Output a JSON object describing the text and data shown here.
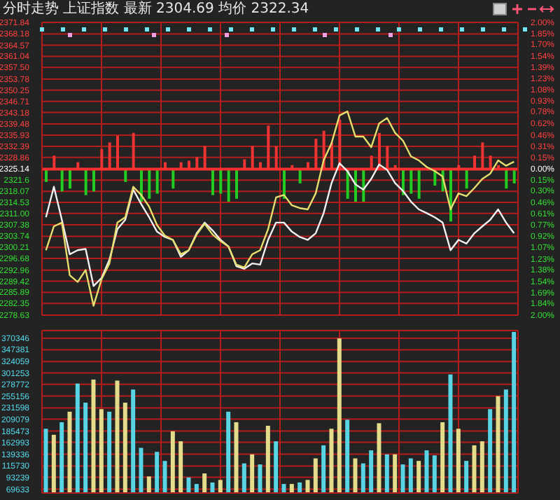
{
  "chart_data": [
    {
      "type": "line",
      "title": "分时走势 上证指数 最新 2304.69 均价 2322.34",
      "categories": [
        null,
        null,
        null,
        null,
        null,
        null,
        null,
        null,
        null,
        null,
        null,
        null,
        null,
        null,
        null,
        null,
        null,
        null,
        null,
        null,
        null,
        null,
        null,
        null,
        null,
        null,
        null,
        null,
        null,
        null,
        null,
        null,
        null,
        null,
        null,
        null,
        null,
        null,
        null,
        null,
        null,
        null,
        null,
        null,
        null,
        null,
        null,
        null,
        null,
        null,
        null,
        null,
        null,
        null,
        null,
        null,
        null,
        null,
        null,
        null
      ],
      "series": [
        {
          "type": "bar",
          "axis": "y2",
          "values": [
            -0.18,
            0.18,
            -0.31,
            -0.27,
            0.09,
            -0.36,
            -0.31,
            0.27,
            0.36,
            0.45,
            -0.18,
            0.49,
            -0.45,
            -0.41,
            -0.34,
            0.09,
            -0.27,
            0.09,
            0.11,
            0.16,
            0.31,
            -0.36,
            -0.34,
            -0.45,
            -0.41,
            0.13,
            0.31,
            0.09,
            0.59,
            0.31,
            -0.41,
            0.05,
            -0.2,
            0.09,
            0.41,
            0.52,
            0.36,
            0.67,
            -0.41,
            -0.45,
            -0.45,
            0.18,
            0.49,
            0.31,
            0.05,
            -0.36,
            -0.34,
            -0.41,
            null,
            -0.23,
            -0.31,
            -0.72,
            0.05,
            -0.27,
            0.18,
            0.36,
            0.18,
            0.05,
            -0.27,
            -0.2
          ],
          "colors": [
            "#22cc22",
            "#ee3333",
            "#22cc22",
            "#22cc22",
            "#ee3333",
            "#22cc22",
            "#22cc22",
            "#ee3333",
            "#ee3333",
            "#ee3333",
            "#22cc22",
            "#ee3333",
            "#22cc22",
            "#22cc22",
            "#22cc22",
            "#ee3333",
            "#22cc22",
            "#ee3333",
            "#ee3333",
            "#ee3333",
            "#ee3333",
            "#22cc22",
            "#22cc22",
            "#22cc22",
            "#22cc22",
            "#ee3333",
            "#ee3333",
            "#ee3333",
            "#ee3333",
            "#ee3333",
            "#22cc22",
            "#ee3333",
            "#22cc22",
            "#ee3333",
            "#ee3333",
            "#ee3333",
            "#ee3333",
            "#ee3333",
            "#22cc22",
            "#22cc22",
            "#22cc22",
            "#ee3333",
            "#ee3333",
            "#ee3333",
            "#ee3333",
            "#22cc22",
            "#22cc22",
            "#22cc22",
            "#ee3333",
            "#22cc22",
            "#22cc22",
            "#22cc22",
            "#ee3333",
            "#22cc22",
            "#ee3333",
            "#ee3333",
            "#ee3333",
            "#ee3333",
            "#22cc22",
            "#22cc22"
          ]
        },
        {
          "type": "line",
          "color": "#f0f0f0",
          "values": [
            2309.8,
            2319.5,
            2309.0,
            2298.0,
            2299.3,
            2299.7,
            2287.9,
            2290.4,
            2296.3,
            2306.0,
            2309.0,
            2318.6,
            2314.0,
            2309.8,
            2305.2,
            2303.5,
            2302.6,
            2297.2,
            2299.3,
            2304.7,
            2308.1,
            2305.6,
            2302.6,
            2300.5,
            2294.2,
            2293.4,
            2295.1,
            2294.7,
            2302.6,
            2308.1,
            2308.1,
            2305.2,
            2303.5,
            2302.6,
            2304.7,
            2311.1,
            2320.7,
            2327.0,
            2324.5,
            2320.3,
            2318.6,
            2322.0,
            2326.6,
            2324.9,
            2320.7,
            2318.2,
            2314.8,
            2312.3,
            2311.1,
            2309.8,
            2308.1,
            2299.3,
            2302.6,
            2301.4,
            2304.7,
            2306.9,
            2309.0,
            2312.3,
            2308.1,
            2304.7
          ]
        },
        {
          "type": "line",
          "color": "#e6de6e",
          "values": [
            2299.3,
            2306.9,
            2308.1,
            2291.3,
            2289.2,
            2293.0,
            2281.6,
            2290.0,
            2295.1,
            2308.1,
            2309.8,
            2319.5,
            2316.9,
            2313.2,
            2307.3,
            2303.9,
            2302.6,
            2298.0,
            2299.3,
            2304.3,
            2307.7,
            2304.3,
            2302.2,
            2300.5,
            2294.7,
            2293.8,
            2298.0,
            2299.3,
            2306.0,
            2316.1,
            2316.9,
            2313.6,
            2312.7,
            2312.3,
            2317.4,
            2327.9,
            2333.4,
            2342.2,
            2343.5,
            2335.5,
            2335.5,
            2332.1,
            2339.7,
            2341.4,
            2336.7,
            2334.2,
            2329.2,
            2327.9,
            2325.8,
            2324.5,
            2322.8,
            2312.3,
            2317.4,
            2316.5,
            2319.1,
            2322.0,
            2323.7,
            2327.9,
            2326.2,
            2327.5
          ]
        }
      ],
      "ylim": [
        2278.63,
        2371.84
      ],
      "yticks": [
        2278.63,
        2282.35,
        2285.89,
        2289.42,
        2292.96,
        2296.68,
        2300.21,
        2303.74,
        2307.38,
        {
          "value": 2311,
          "label": "2311.00"
        },
        2314.53,
        2318.07,
        2321.6,
        2325.14,
        2328.86,
        2332.39,
        2335.93,
        2339.48,
        2343.18,
        2346.71,
        2350.25,
        2353.78,
        {
          "value": 2357.5,
          "label": "2357.50"
        },
        2361.04,
        2364.57,
        2368.18,
        2371.84
      ],
      "y2lim": [
        -2,
        2
      ],
      "y2ticks": [
        {
          "value": -2.0,
          "label": "2.00%"
        },
        {
          "value": -1.84,
          "label": "1.84%"
        },
        {
          "value": -1.69,
          "label": "1.69%"
        },
        {
          "value": -1.54,
          "label": "1.54%"
        },
        {
          "value": -1.38,
          "label": "1.38%"
        },
        {
          "value": -1.23,
          "label": "1.23%"
        },
        {
          "value": -1.07,
          "label": "1.07%"
        },
        {
          "value": -0.92,
          "label": "0.92%"
        },
        {
          "value": -0.77,
          "label": "0.77%"
        },
        {
          "value": -0.61,
          "label": "0.61%"
        },
        {
          "value": -0.46,
          "label": "0.46%"
        },
        {
          "value": -0.3,
          "label": "0.30%"
        },
        {
          "value": -0.15,
          "label": "0.15%"
        },
        {
          "value": 0,
          "label": "0.00%"
        },
        {
          "value": 0.15,
          "label": "0.15%"
        },
        {
          "value": 0.31,
          "label": "0.31%"
        },
        {
          "value": 0.46,
          "label": "0.46%"
        },
        {
          "value": 0.62,
          "label": "0.62%"
        },
        {
          "value": 0.78,
          "label": "0.78%"
        },
        {
          "value": 0.93,
          "label": "0.93%"
        },
        {
          "value": 1.08,
          "label": "1.08%"
        },
        {
          "value": 1.23,
          "label": "1.23%"
        },
        {
          "value": 1.39,
          "label": "1.39%"
        },
        {
          "value": 1.54,
          "label": "1.54%"
        },
        {
          "value": 1.7,
          "label": "1.70%"
        },
        {
          "value": 1.85,
          "label": "1.85%"
        },
        {
          "value": 2.0,
          "label": "2.00%"
        }
      ],
      "ref_lines": [
        {
          "axis": "y",
          "value": 2325.14,
          "color": "#ff3030"
        }
      ],
      "grid": true,
      "tick_labels": "y"
    },
    {
      "type": "bar",
      "categories": [
        null,
        null,
        null,
        null,
        null,
        null,
        null,
        null,
        null,
        null,
        null,
        null,
        null,
        null,
        null,
        null,
        null,
        null,
        null,
        null,
        null,
        null,
        null,
        null,
        null,
        null,
        null,
        null,
        null,
        null,
        null,
        null,
        null,
        null,
        null,
        null,
        null,
        null,
        null,
        null,
        null,
        null,
        null,
        null,
        null,
        null,
        null,
        null,
        null,
        null,
        null,
        null,
        null,
        null,
        null,
        null,
        null,
        null,
        null,
        null
      ],
      "values": [
        190000,
        178000,
        203000,
        224000,
        280000,
        242000,
        288000,
        229000,
        224000,
        286000,
        242000,
        268000,
        152000,
        95000,
        144000,
        126000,
        185000,
        165000,
        93000,
        80000,
        101000,
        83000,
        88000,
        224000,
        203000,
        121000,
        139000,
        119000,
        196000,
        165000,
        80000,
        80000,
        83000,
        88000,
        131000,
        157000,
        190000,
        370000,
        208000,
        131000,
        121000,
        147000,
        201000,
        139000,
        139000,
        119000,
        131000,
        126000,
        147000,
        137000,
        203000,
        298000,
        190000,
        126000,
        157000,
        165000,
        229000,
        255000,
        268000,
        383000
      ],
      "colors": [
        "#58d4e4",
        "#e4dc8a",
        "#58d4e4",
        "#e4dc8a",
        "#58d4e4",
        "#58d4e4",
        "#e4dc8a",
        "#e4dc8a",
        "#58d4e4",
        "#e4dc8a",
        "#e4dc8a",
        "#58d4e4",
        "#58d4e4",
        "#e4dc8a",
        "#58d4e4",
        "#58d4e4",
        "#e4dc8a",
        "#e4dc8a",
        "#58d4e4",
        "#58d4e4",
        "#e4dc8a",
        "#58d4e4",
        "#e4dc8a",
        "#58d4e4",
        "#e4dc8a",
        "#58d4e4",
        "#e4dc8a",
        "#58d4e4",
        "#e4dc8a",
        "#58d4e4",
        "#58d4e4",
        "#e4dc8a",
        "#58d4e4",
        "#e4dc8a",
        "#e4dc8a",
        "#58d4e4",
        "#e4dc8a",
        "#e4dc8a",
        "#58d4e4",
        "#e4dc8a",
        "#58d4e4",
        "#58d4e4",
        "#e4dc8a",
        "#58d4e4",
        "#e4dc8a",
        "#58d4e4",
        "#58d4e4",
        "#e4dc8a",
        "#58d4e4",
        "#58d4e4",
        "#e4dc8a",
        "#58d4e4",
        "#e4dc8a",
        "#58d4e4",
        "#e4dc8a",
        "#e4dc8a",
        "#58d4e4",
        "#e4dc8a",
        "#58d4e4",
        "#58d4e4"
      ],
      "ylim": [
        62000,
        385700
      ],
      "yticks": [
        69633,
        93239,
        115730,
        139336,
        162993,
        185473,
        209079,
        231598,
        255156,
        278772,
        301253,
        324059,
        347381,
        370346
      ],
      "grid": true,
      "tick_labels": "y"
    }
  ]
}
